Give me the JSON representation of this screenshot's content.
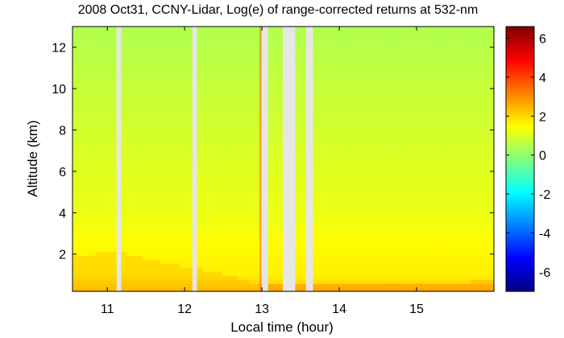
{
  "chart_data": {
    "type": "heatmap",
    "title": "2008 Oct31, CCNY-Lidar, Log(e) of range-corrected returns at 532-nm",
    "xlabel": "Local time (hour)",
    "ylabel": "Altitude (km)",
    "xlim": [
      10.55,
      16.0
    ],
    "ylim": [
      0.2,
      13.0
    ],
    "x_ticks": [
      11,
      12,
      13,
      14,
      15
    ],
    "x_tick_labels": [
      "11",
      "12",
      "13",
      "14",
      "15"
    ],
    "y_ticks": [
      2,
      4,
      6,
      8,
      10,
      12
    ],
    "y_tick_labels": [
      "2",
      "4",
      "6",
      "8",
      "10",
      "12"
    ],
    "colorbar": {
      "range": [
        -7,
        6.6
      ],
      "ticks": [
        -6,
        -4,
        -2,
        0,
        2,
        4,
        6
      ],
      "tick_labels": [
        "-6",
        "-4",
        "-2",
        "0",
        "2",
        "4",
        "6"
      ],
      "colormap": "jet"
    },
    "data_gaps_hours": [
      [
        11.12,
        11.18
      ],
      [
        12.1,
        12.16
      ],
      [
        13.0,
        13.08
      ],
      [
        13.27,
        13.43
      ],
      [
        13.57,
        13.66
      ]
    ],
    "profile_altitude_km": [
      0.3,
      0.7,
      1.0,
      2.0,
      2.5,
      3.0,
      4.0,
      6.0,
      8.0,
      10.0,
      12.0,
      13.0
    ],
    "profile_value": [
      2.1,
      1.9,
      1.7,
      1.6,
      1.55,
      1.4,
      1.25,
      1.1,
      0.9,
      0.75,
      0.55,
      0.45
    ],
    "boundary_layer_top_km": [
      {
        "x": 10.6,
        "y": 2.0
      },
      {
        "x": 11.2,
        "y": 2.1
      },
      {
        "x": 11.5,
        "y": 1.8
      },
      {
        "x": 11.9,
        "y": 1.5
      },
      {
        "x": 12.2,
        "y": 1.3
      },
      {
        "x": 12.6,
        "y": 1.0
      },
      {
        "x": 12.95,
        "y": 0.55
      },
      {
        "x": 13.5,
        "y": 0.6
      },
      {
        "x": 14.5,
        "y": 0.6
      },
      {
        "x": 15.9,
        "y": 0.7
      }
    ],
    "marks": [
      {
        "x": 12.98,
        "value": 3.8
      }
    ]
  }
}
